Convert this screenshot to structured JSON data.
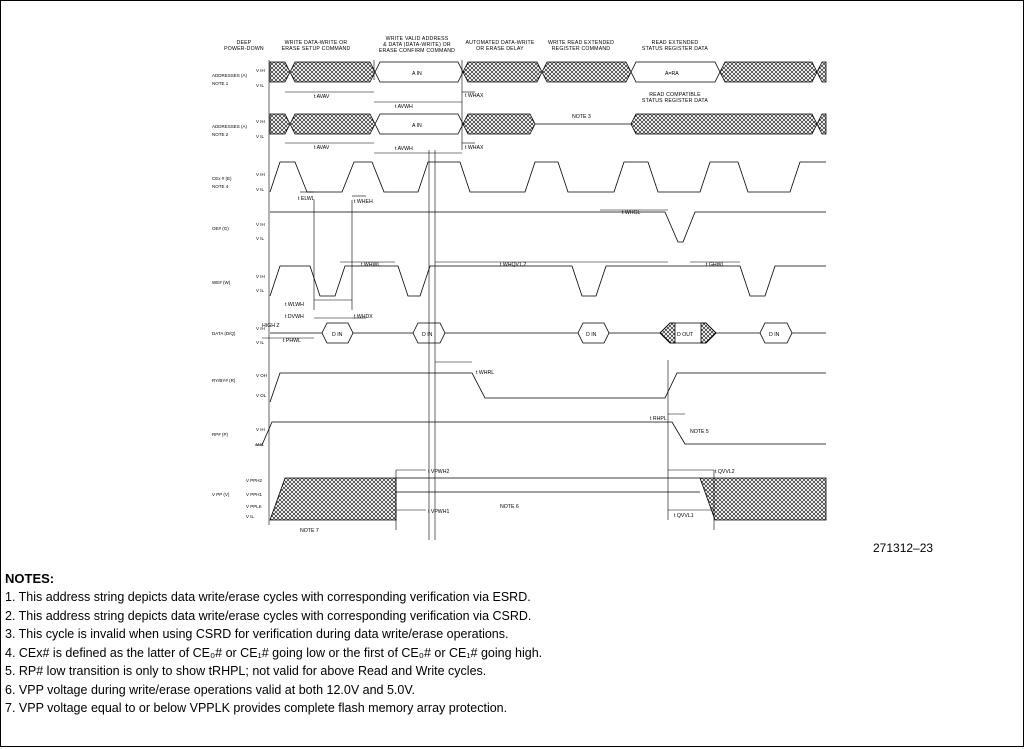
{
  "header_labels": [
    [
      "DEEP",
      "POWER-DOWN"
    ],
    [
      "WRITE DATA-WRITE OR",
      "ERASE SETUP COMMAND"
    ],
    [
      "WRITE VALID ADDRESS",
      "& DATA (DATA-WRITE) OR",
      "ERASE CONFIRM COMMAND"
    ],
    [
      "AUTOMATED DATA-WRITE",
      "OR ERASE DELAY"
    ],
    [
      "WRITE READ EXTENDED",
      "REGISTER COMMAND"
    ],
    [
      "READ EXTENDED",
      "STATUS REGISTER DATA"
    ]
  ],
  "signals": [
    {
      "name": "ADDRESSES (A)",
      "sub": "NOTE 1",
      "high": "V IH",
      "low": "V IL"
    },
    {
      "name": "ADDRESSES (A)",
      "sub": "NOTE 2",
      "high": "V IH",
      "low": "V IL"
    },
    {
      "name": "CEx # (E)",
      "sub": "NOTE 4",
      "high": "V IH",
      "low": "V IL"
    },
    {
      "name": "OE# (G)",
      "sub": "",
      "high": "V IH",
      "low": "V IL"
    },
    {
      "name": "WE# (W)",
      "sub": "",
      "high": "V IH",
      "low": "V IL"
    },
    {
      "name": "DATA (D/Q)",
      "sub": "",
      "high": "V IH",
      "low": "V IL"
    },
    {
      "name": "RY/BY# (R)",
      "sub": "",
      "high": "V OH",
      "low": "V OL"
    },
    {
      "name": "RP# (P)",
      "sub": "",
      "high": "V IH",
      "low": "V IL"
    },
    {
      "name": "V PP (V)",
      "sub": "",
      "high": "V PPH2",
      "low": "V IL"
    }
  ],
  "vpp_levels": [
    "V PPH2",
    "V PPH1",
    "V PPLK",
    "V IL"
  ],
  "bus_values": {
    "ain": "A IN",
    "ara": "A=RA",
    "din": "D IN",
    "dout": "D OUT",
    "high_z": "HIGH Z"
  },
  "bus_annotations": {
    "read_compatible": [
      "READ COMPATIBLE",
      "STATUS REGISTER DATA"
    ],
    "note3": "NOTE 3",
    "note5": "NOTE 5",
    "note6": "NOTE 6",
    "note7": "NOTE 7"
  },
  "timing_labels": {
    "avav": "t AVAV",
    "avwh": "t AVWH",
    "whax": "t WHAX",
    "elwl": "t ELWL",
    "wheh": "t WHEH",
    "whgl": "t WHGL",
    "whwl": "t WHWL",
    "whqv": "t WHQV1,2",
    "ghwl": "t GHWL",
    "wlwh": "t WLWH",
    "dvwh": "t DVWH",
    "whdx": "t WHDX",
    "phwl": "t PHWL",
    "whrl": "t WHRL",
    "rhpl": "t RHPL",
    "vpwh2": "t VPWH2",
    "vpwh1": "t VPWH1",
    "qvvl2": "t QVVL2",
    "qvvl1": "t QVVL1"
  },
  "figure_number": "271312–23",
  "notes_title": "NOTES:",
  "notes": [
    "1. This address string depicts data write/erase cycles with corresponding verification via ESRD.",
    "2. This address string depicts data write/erase cycles with corresponding verification via CSRD.",
    "3. This cycle is invalid when using CSRD for verification during data write/erase operations.",
    "4. CEx# is defined as the latter of CE₀# or CE₁# going low or the first of CE₀# or CE₁# going high.",
    "5. RP# low transition is only to show tRHPL; not valid for above Read and Write cycles.",
    "6. VPP voltage during write/erase operations valid at both 12.0V and 5.0V.",
    "7. VPP voltage equal to or below VPPLK provides complete flash memory array protection."
  ]
}
